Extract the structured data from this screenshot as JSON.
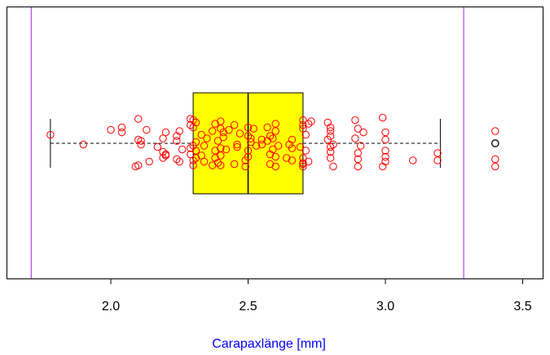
{
  "chart_data": {
    "type": "boxplot",
    "title": "",
    "xlabel": "Carapaxlänge [mm]",
    "ylabel": "",
    "orientation": "horizontal",
    "xlim": [
      1.72,
      3.55
    ],
    "ticks": [
      {
        "value": 2.0,
        "label": "2.0"
      },
      {
        "value": 2.5,
        "label": "2.5"
      },
      {
        "value": 3.0,
        "label": "3.0"
      },
      {
        "value": 3.5,
        "label": "3.5"
      }
    ],
    "box": {
      "whisker_low": 1.78,
      "q1": 2.3,
      "median": 2.5,
      "q3": 2.7,
      "whisker_high": 3.2,
      "outliers": [
        3.4
      ],
      "fill": "#ffff00"
    },
    "reference_lines": [
      {
        "value": 1.71,
        "color": "#a020f0"
      },
      {
        "value": 3.285,
        "color": "#a020f0"
      }
    ],
    "points_color": "#ff0000",
    "xlabel_color": "#0000ff",
    "points": [
      [
        1.78,
        -0.7
      ],
      [
        1.9,
        0.1
      ],
      [
        2.0,
        -1.1
      ],
      [
        2.04,
        -1.3
      ],
      [
        2.04,
        -0.9
      ],
      [
        2.09,
        1.9
      ],
      [
        2.1,
        -2.0
      ],
      [
        2.1,
        -0.3
      ],
      [
        2.1,
        1.8
      ],
      [
        2.11,
        -0.2
      ],
      [
        2.11,
        0.1
      ],
      [
        2.13,
        -1.1
      ],
      [
        2.14,
        1.5
      ],
      [
        2.17,
        0.3
      ],
      [
        2.19,
        0.7
      ],
      [
        2.19,
        1.2
      ],
      [
        2.19,
        -0.4
      ],
      [
        2.2,
        -0.9
      ],
      [
        2.2,
        0.9
      ],
      [
        2.2,
        1.0
      ],
      [
        2.24,
        -0.6
      ],
      [
        2.24,
        1.3
      ],
      [
        2.24,
        -0.2
      ],
      [
        2.25,
        -1.0
      ],
      [
        2.25,
        1.5
      ],
      [
        2.26,
        0.5
      ],
      [
        2.29,
        0.4
      ],
      [
        2.29,
        -1.5
      ],
      [
        2.29,
        -2.0
      ],
      [
        2.29,
        0.9
      ],
      [
        2.3,
        0.2
      ],
      [
        2.3,
        1.4
      ],
      [
        2.3,
        1.8
      ],
      [
        2.3,
        -1.3
      ],
      [
        2.3,
        -1.9
      ],
      [
        2.31,
        -0.1
      ],
      [
        2.31,
        1.2
      ],
      [
        2.31,
        -1.7
      ],
      [
        2.31,
        0.6
      ],
      [
        2.33,
        -0.7
      ],
      [
        2.33,
        1.0
      ],
      [
        2.34,
        0.2
      ],
      [
        2.34,
        1.5
      ],
      [
        2.35,
        -0.4
      ],
      [
        2.37,
        1.8
      ],
      [
        2.37,
        -1.0
      ],
      [
        2.38,
        -1.6
      ],
      [
        2.38,
        0.6
      ],
      [
        2.38,
        1.2
      ],
      [
        2.39,
        -0.2
      ],
      [
        2.39,
        1.6
      ],
      [
        2.4,
        -1.2
      ],
      [
        2.4,
        0.4
      ],
      [
        2.4,
        -1.8
      ],
      [
        2.4,
        1.0
      ],
      [
        2.4,
        1.8
      ],
      [
        2.41,
        -0.9
      ],
      [
        2.41,
        -0.5
      ],
      [
        2.42,
        0.5
      ],
      [
        2.43,
        -1.1
      ],
      [
        2.45,
        1.7
      ],
      [
        2.45,
        -1.5
      ],
      [
        2.46,
        0.1
      ],
      [
        2.46,
        0.3
      ],
      [
        2.47,
        -0.8
      ],
      [
        2.49,
        1.4
      ],
      [
        2.49,
        1.9
      ],
      [
        2.5,
        -1.3
      ],
      [
        2.5,
        -0.6
      ],
      [
        2.5,
        0.6
      ],
      [
        2.5,
        1.1
      ],
      [
        2.51,
        -0.4
      ],
      [
        2.51,
        -0.1
      ],
      [
        2.52,
        -1.2
      ],
      [
        2.53,
        0.2
      ],
      [
        2.55,
        0.1
      ],
      [
        2.55,
        -0.3
      ],
      [
        2.57,
        -0.2
      ],
      [
        2.57,
        -1.3
      ],
      [
        2.58,
        -0.6
      ],
      [
        2.58,
        0.9
      ],
      [
        2.58,
        1.7
      ],
      [
        2.59,
        -0.4
      ],
      [
        2.59,
        0.5
      ],
      [
        2.6,
        -1.6
      ],
      [
        2.6,
        -1.0
      ],
      [
        2.6,
        1.1
      ],
      [
        2.6,
        1.9
      ],
      [
        2.61,
        0.2
      ],
      [
        2.64,
        1.2
      ],
      [
        2.65,
        0.1
      ],
      [
        2.66,
        1.4
      ],
      [
        2.66,
        -0.3
      ],
      [
        2.66,
        0.4
      ],
      [
        2.69,
        0.3
      ],
      [
        2.7,
        -1.2
      ],
      [
        2.7,
        -1.5
      ],
      [
        2.7,
        -1.9
      ],
      [
        2.7,
        1.2
      ],
      [
        2.7,
        1.6
      ],
      [
        2.7,
        1.7
      ],
      [
        2.7,
        1.9
      ],
      [
        2.71,
        0.6
      ],
      [
        2.71,
        -0.7
      ],
      [
        2.72,
        -1.6
      ],
      [
        2.72,
        1.5
      ],
      [
        2.73,
        -1.8
      ],
      [
        2.79,
        -1.7
      ],
      [
        2.79,
        -0.3
      ],
      [
        2.8,
        -1.0
      ],
      [
        2.8,
        -0.6
      ],
      [
        2.8,
        0.3
      ],
      [
        2.8,
        0.7
      ],
      [
        2.8,
        1.2
      ],
      [
        2.8,
        -1.3
      ],
      [
        2.81,
        1.9
      ],
      [
        2.81,
        0.1
      ],
      [
        2.89,
        -1.9
      ],
      [
        2.89,
        -0.4
      ],
      [
        2.9,
        0.8
      ],
      [
        2.9,
        1.3
      ],
      [
        2.9,
        1.9
      ],
      [
        2.9,
        -1.2
      ],
      [
        2.91,
        0.2
      ],
      [
        2.92,
        -0.9
      ],
      [
        2.99,
        -2.1
      ],
      [
        2.99,
        1.9
      ],
      [
        3.0,
        -0.3
      ],
      [
        3.0,
        0.6
      ],
      [
        3.0,
        1.1
      ],
      [
        3.0,
        1.5
      ],
      [
        3.0,
        -0.9
      ],
      [
        3.1,
        1.4
      ],
      [
        3.19,
        0.8
      ],
      [
        3.19,
        1.4
      ],
      [
        3.4,
        1.9
      ],
      [
        3.4,
        1.3
      ],
      [
        3.4,
        -1.0
      ]
    ]
  }
}
